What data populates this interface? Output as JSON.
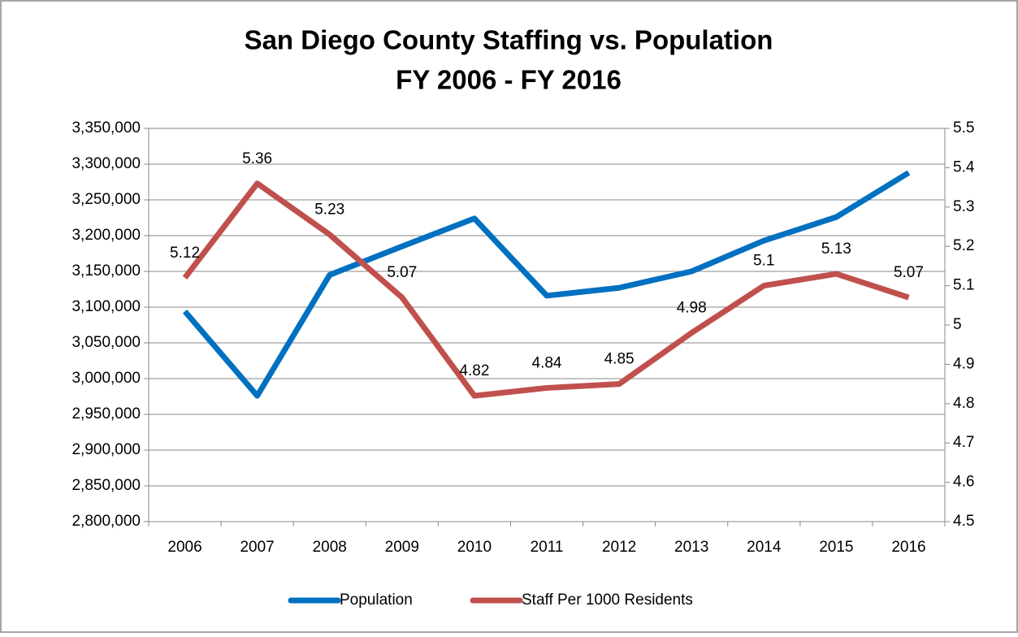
{
  "chart_data": {
    "type": "line",
    "title": "San Diego County Staffing vs. Population",
    "subtitle": "FY 2006 - FY 2016",
    "categories": [
      "2006",
      "2007",
      "2008",
      "2009",
      "2010",
      "2011",
      "2012",
      "2013",
      "2014",
      "2015",
      "2016"
    ],
    "series": [
      {
        "name": "Population",
        "color": "#0070c0",
        "values": [
          3094000,
          2976000,
          3145000,
          3185000,
          3224000,
          3116000,
          3127000,
          3150000,
          3193000,
          3226000,
          3288000
        ]
      },
      {
        "name": "Staff Per 1000 Residents",
        "color": "#c0504d",
        "axis": "y2",
        "data_labels": true,
        "values": [
          5.12,
          5.36,
          5.23,
          5.07,
          4.82,
          4.84,
          4.85,
          4.98,
          5.1,
          5.13,
          5.07
        ]
      }
    ],
    "ylim": [
      2800000,
      3350000
    ],
    "yticks": [
      {
        "value": 2800000,
        "label": "2,800,000"
      },
      {
        "value": 2850000,
        "label": "2,850,000"
      },
      {
        "value": 2900000,
        "label": "2,900,000"
      },
      {
        "value": 2950000,
        "label": "2,950,000"
      },
      {
        "value": 3000000,
        "label": "3,000,000"
      },
      {
        "value": 3050000,
        "label": "3,050,000"
      },
      {
        "value": 3100000,
        "label": "3,100,000"
      },
      {
        "value": 3150000,
        "label": "3,150,000"
      },
      {
        "value": 3200000,
        "label": "3,200,000"
      },
      {
        "value": 3250000,
        "label": "3,250,000"
      },
      {
        "value": 3300000,
        "label": "3,300,000"
      },
      {
        "value": 3350000,
        "label": "3,350,000"
      }
    ],
    "y2lim": [
      4.5,
      5.5
    ],
    "y2ticks": [
      4.5,
      4.6,
      4.7,
      4.8,
      4.9,
      5,
      5.1,
      5.2,
      5.3,
      5.4,
      5.5
    ],
    "grid": true,
    "legend": "bottom"
  }
}
